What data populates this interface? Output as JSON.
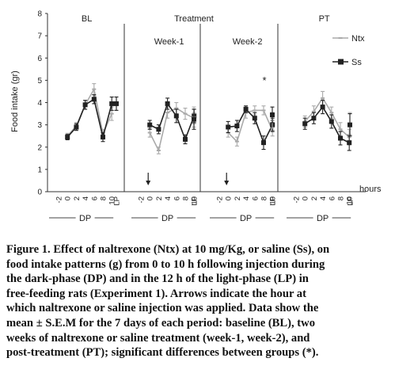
{
  "chart_data": {
    "type": "line",
    "ylabel": "Food intake (gr)",
    "xlabel": "hours",
    "ylim": [
      0,
      8
    ],
    "yticks": [
      0,
      1,
      2,
      3,
      4,
      5,
      6,
      7,
      8
    ],
    "grid": false,
    "legend_position": "top-right",
    "group_label": "Treatment",
    "series_names": [
      "Ntx",
      "Ss"
    ],
    "series_colors": {
      "Ntx": "#aaaaaa",
      "Ss": "#222222"
    },
    "dp_label": "DP",
    "lp_label": "LP",
    "arrow_icon": "down-arrow-icon",
    "panels": [
      {
        "id": "bl",
        "title": "BL",
        "subtitle": "",
        "x": [
          "-2",
          "0",
          "2",
          "4",
          "6",
          "8",
          "10"
        ],
        "series": [
          {
            "name": "Ntx",
            "values": [
              2.5,
              2.95,
              3.9,
              4.6,
              2.6,
              3.5
            ],
            "errors": [
              0.12,
              0.15,
              0.2,
              0.25,
              0.2,
              0.3
            ]
          },
          {
            "name": "Ss",
            "values": [
              2.45,
              2.9,
              3.9,
              4.15,
              2.45,
              3.95
            ],
            "errors": [
              0.12,
              0.15,
              0.2,
              0.2,
              0.2,
              0.3
            ]
          }
        ],
        "lp": {
          "Ntx": 3.95,
          "Ss": 3.95,
          "err": 0.3
        },
        "arrow": false,
        "asterisk": ""
      },
      {
        "id": "week1",
        "title": "",
        "subtitle": "Week-1",
        "x": [
          "-2",
          "0",
          "2",
          "4",
          "6",
          "8",
          "10"
        ],
        "series": [
          {
            "name": "Ntx",
            "values": [
              2.65,
              1.85,
              3.55,
              3.75,
              3.5,
              3.3
            ],
            "errors": [
              0.2,
              0.15,
              0.25,
              0.25,
              0.25,
              0.25
            ]
          },
          {
            "name": "Ss",
            "values": [
              3.0,
              2.8,
              3.95,
              3.4,
              2.35,
              3.4
            ],
            "errors": [
              0.2,
              0.2,
              0.25,
              0.3,
              0.2,
              0.3
            ]
          }
        ],
        "lp": {
          "Ntx": 3.35,
          "Ss": 3.25,
          "err": 0.45
        },
        "arrow": true,
        "asterisk": ""
      },
      {
        "id": "week2",
        "title": "",
        "subtitle": "Week-2",
        "x": [
          "-2",
          "0",
          "2",
          "4",
          "6",
          "8",
          "10"
        ],
        "series": [
          {
            "name": "Ntx",
            "values": [
              2.65,
              2.25,
              3.55,
              3.65,
              3.65,
              2.75
            ],
            "errors": [
              0.2,
              0.2,
              0.25,
              0.2,
              0.2,
              0.25
            ]
          },
          {
            "name": "Ss",
            "values": [
              2.9,
              2.95,
              3.7,
              3.3,
              2.2,
              3.0
            ],
            "errors": [
              0.25,
              0.25,
              0.15,
              0.25,
              0.3,
              0.3
            ]
          }
        ],
        "lp": {
          "Ntx": 3.2,
          "Ss": 3.45,
          "err": 0.35
        },
        "arrow": true,
        "asterisk": "*"
      },
      {
        "id": "pt",
        "title": "PT",
        "subtitle": "",
        "x": [
          "-2",
          "0",
          "2",
          "4",
          "6",
          "8",
          "10"
        ],
        "series": [
          {
            "name": "Ntx",
            "values": [
              3.15,
              3.6,
              4.2,
              3.55,
              2.8,
              2.45
            ],
            "errors": [
              0.25,
              0.25,
              0.3,
              0.25,
              0.3,
              0.35
            ]
          },
          {
            "name": "Ss",
            "values": [
              3.05,
              3.3,
              3.8,
              3.15,
              2.4,
              2.2
            ],
            "errors": [
              0.25,
              0.25,
              0.3,
              0.3,
              0.3,
              0.35
            ]
          }
        ],
        "lp": {
          "Ntx": 3.05,
          "Ss": 3.0,
          "err": 0.5
        },
        "arrow": false,
        "asterisk": ""
      }
    ]
  },
  "caption": {
    "lines": [
      "Figure 1. Effect of naltrexone (Ntx) at 10 mg/Kg, or saline (Ss), on",
      "food intake patterns (g) from 0 to 10 h following injection during",
      "the dark-phase (DP) and in the 12 h of the light-phase (LP) in",
      "free-feeding rats (Experiment 1). Arrows indicate the hour at",
      "which naltrexone or saline injection was applied. Data show the",
      "mean ± S.E.M for the 7 days of each period: baseline (BL), two",
      "weeks of naltrexone or saline treatment (week-1, week-2), and",
      "post-treatment (PT); significant differences between groups (*)."
    ]
  }
}
